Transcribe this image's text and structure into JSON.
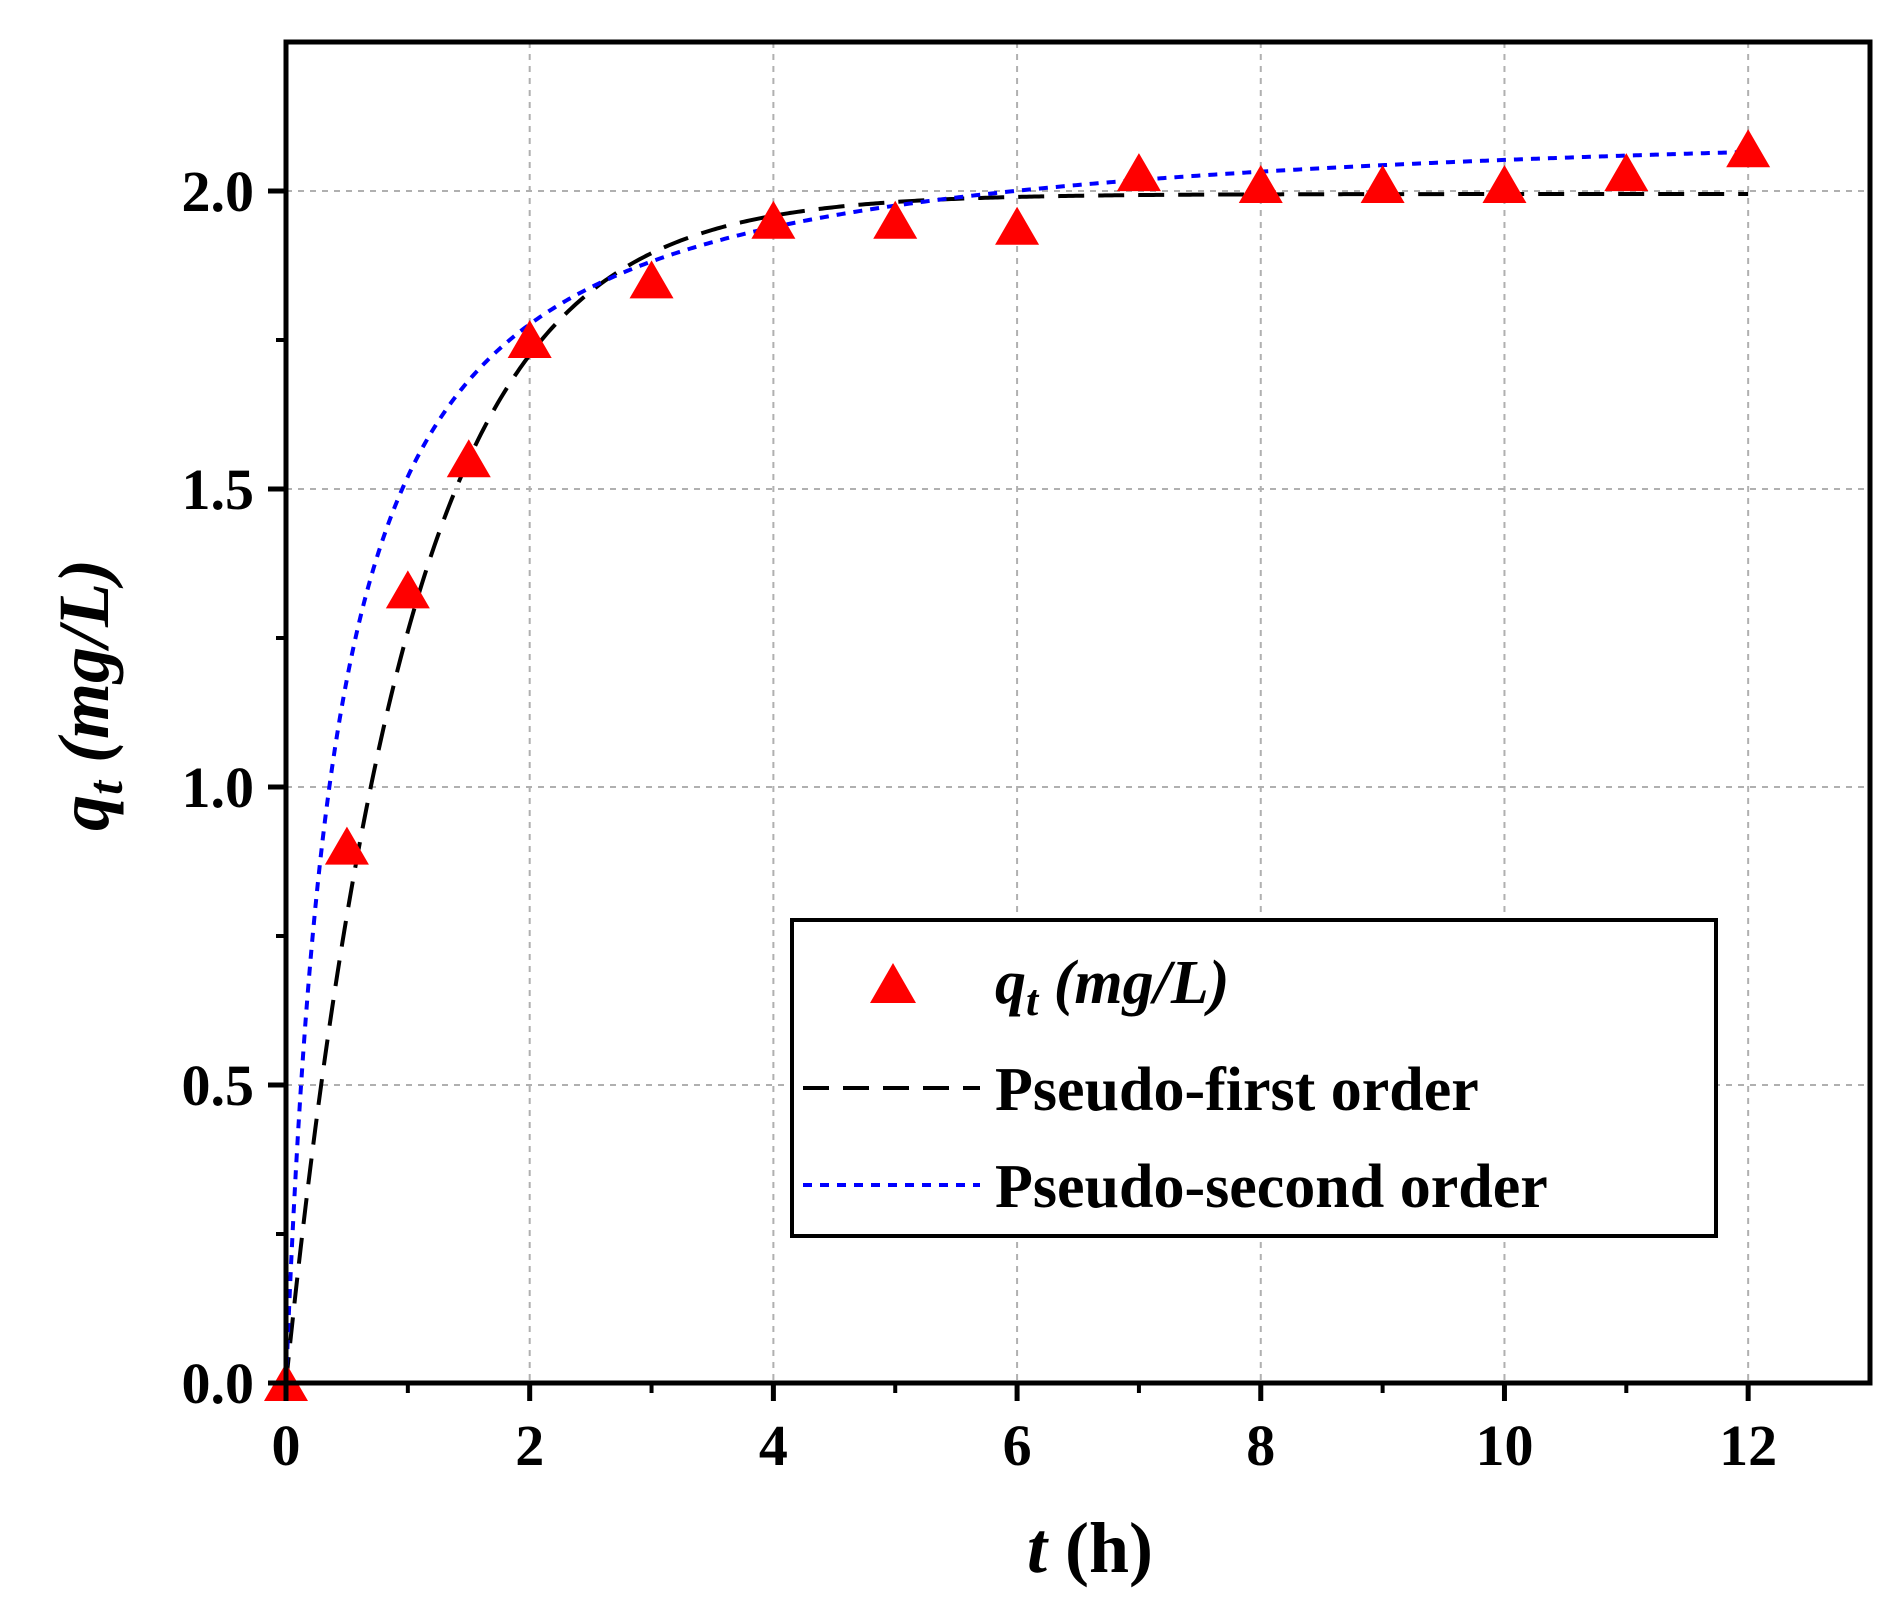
{
  "chart_data": {
    "type": "scatter",
    "title": "",
    "xlabel": {
      "var": "t",
      "unit": " (h)"
    },
    "ylabel": {
      "var": "q",
      "sub": "t",
      "unit": " (mg/L)"
    },
    "xlim": [
      0,
      13
    ],
    "ylim": [
      0,
      2.25
    ],
    "xticks": [
      0,
      2,
      4,
      6,
      8,
      10,
      12
    ],
    "xtick_labels": [
      "0",
      "2",
      "4",
      "6",
      "8",
      "10",
      "12"
    ],
    "yticks": [
      0.0,
      0.5,
      1.0,
      1.5,
      2.0
    ],
    "ytick_labels": [
      "0.0",
      "0.5",
      "1.0",
      "1.5",
      "2.0"
    ],
    "grid": true,
    "legend_position": "lower-right",
    "series": [
      {
        "name": "qt (mg/L)",
        "kind": "markers",
        "marker": "triangle",
        "color": "#ff0000",
        "legend": {
          "var": "q",
          "sub": "t",
          "unit": " (mg/L)"
        },
        "x": [
          0,
          0.5,
          1,
          1.5,
          2,
          3,
          4,
          5,
          6,
          7,
          8,
          9,
          10,
          11,
          12
        ],
        "y": [
          0.0,
          0.9,
          1.33,
          1.55,
          1.75,
          1.85,
          1.95,
          1.95,
          1.94,
          2.03,
          2.01,
          2.01,
          2.01,
          2.03,
          2.07
        ]
      },
      {
        "name": "Pseudo-first order",
        "kind": "line",
        "dash": "dashed",
        "color": "#000000",
        "legend_label": "Pseudo-first order",
        "model": {
          "qe": 1.995,
          "k1": 1.0
        }
      },
      {
        "name": "Pseudo-second order",
        "kind": "line",
        "dash": "dotted",
        "color": "#0000ff",
        "legend_label": "Pseudo-second order",
        "model": {
          "qe": 2.135,
          "k2": 1.16
        }
      }
    ]
  }
}
